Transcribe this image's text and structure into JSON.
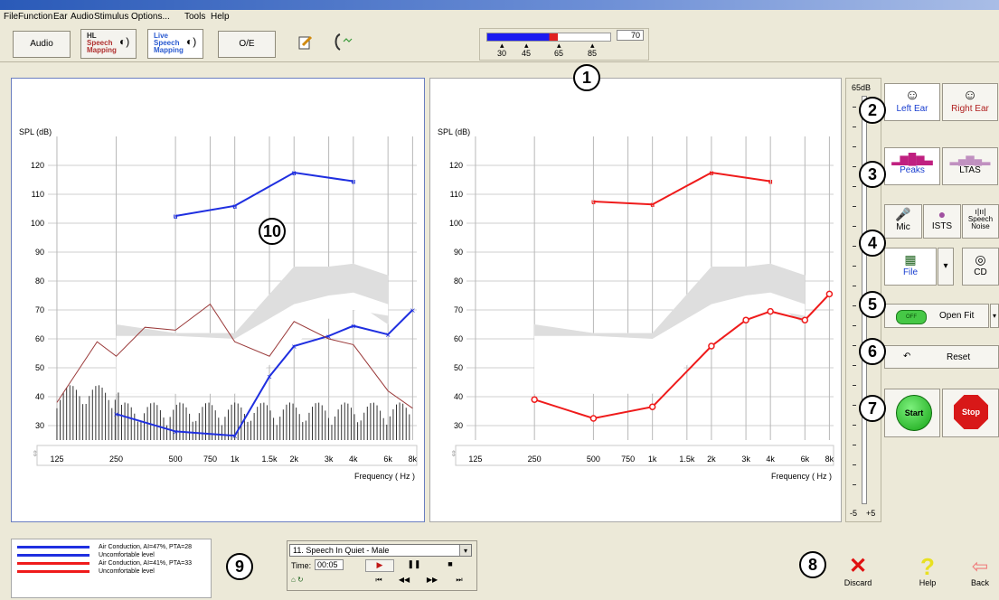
{
  "menu": [
    "File",
    "Function",
    "Ear",
    "Audio",
    "Stimulus",
    "Options...",
    "Tools",
    "Help"
  ],
  "toolbar": {
    "audio": "Audio",
    "hl_speech_mapping": [
      "HL",
      "Speech",
      "Mapping"
    ],
    "live_speech_mapping": [
      "Live",
      "Speech",
      "Mapping"
    ],
    "oe": "O/E"
  },
  "level_meter": {
    "value": "70",
    "ticks": [
      "30",
      "45",
      "65",
      "85"
    ],
    "level_fraction": 0.57
  },
  "callouts": [
    "1",
    "2",
    "3",
    "4",
    "5",
    "6",
    "7",
    "8",
    "9",
    "10"
  ],
  "graph": {
    "y_label": "SPL (dB)",
    "x_label": "Frequency ( Hz )",
    "y_ticks": [
      "120",
      "110",
      "100",
      "90",
      "80",
      "70",
      "60",
      "50",
      "40",
      "30"
    ],
    "x_ticks": [
      "125",
      "250",
      "500",
      "750",
      "1k",
      "1.5k",
      "2k",
      "3k",
      "4k",
      "6k",
      "8k"
    ]
  },
  "chart_data": [
    {
      "type": "line",
      "title": "",
      "xlabel": "Frequency ( Hz )",
      "ylabel": "SPL (dB)",
      "ylim": [
        25,
        130
      ],
      "x_scale": "log",
      "series": [
        {
          "marker": "U",
          "color": "#1f2fe0",
          "x": [
            500,
            1000,
            2000,
            4000
          ],
          "y": [
            102.5,
            106,
            117.5,
            114.5
          ]
        },
        {
          "marker": "X",
          "color": "#1f2fe0",
          "x": [
            250,
            500,
            1000,
            1500,
            2000,
            3000,
            4000,
            6000,
            8000
          ],
          "y": [
            34,
            28,
            26.5,
            47,
            57.5,
            61,
            64.5,
            61.5,
            70
          ]
        },
        {
          "marker": "none",
          "color": "#9b3b3b",
          "x": [
            125,
            200,
            250,
            350,
            500,
            750,
            1000,
            1500,
            2000,
            3000,
            4000,
            6000,
            8000
          ],
          "y": [
            38,
            59,
            54,
            64,
            63,
            72,
            59,
            54,
            66,
            60,
            58,
            42,
            36
          ]
        }
      ]
    },
    {
      "type": "line",
      "title": "",
      "xlabel": "Frequency ( Hz )",
      "ylabel": "SPL (dB)",
      "ylim": [
        25,
        130
      ],
      "x_scale": "log",
      "series": [
        {
          "marker": "U",
          "color": "#ef1b1b",
          "x": [
            500,
            1000,
            2000,
            4000
          ],
          "y": [
            107.5,
            106.5,
            117.5,
            114.5
          ]
        },
        {
          "marker": "o",
          "color": "#ef1b1b",
          "x": [
            250,
            500,
            1000,
            2000,
            3000,
            4000,
            6000,
            8000
          ],
          "y": [
            39,
            32.5,
            36.5,
            57.5,
            66.5,
            69.5,
            66.5,
            75.5
          ]
        }
      ]
    }
  ],
  "side": {
    "top_db": "65dB",
    "bottom_l": "-5",
    "bottom_r": "+5",
    "left_ear": "Left Ear",
    "right_ear": "Right Ear",
    "peaks": "Peaks",
    "ltas": "LTAS",
    "mic": "Mic",
    "ists": "ISTS",
    "speech_noise": [
      "Speech",
      "Noise"
    ],
    "file": "File",
    "cd": "CD",
    "open_fit": "Open Fit",
    "reset": "Reset",
    "start": "Start",
    "stop": "Stop"
  },
  "legend": {
    "items": [
      {
        "color": "#1f2fe0",
        "text": "Air Conduction, AI=47%, PTA=28"
      },
      {
        "color": "#1f2fe0",
        "text": "Uncomfortable level"
      },
      {
        "color": "#ef1b1b",
        "text": "Air Conduction, AI=41%, PTA=33"
      },
      {
        "color": "#ef1b1b",
        "text": "Uncomfortable level"
      }
    ]
  },
  "player": {
    "track": "11. Speech In Quiet - Male",
    "time_label": "Time:",
    "time": "00:05"
  },
  "bottom": {
    "discard": "Discard",
    "help": "Help",
    "back": "Back"
  }
}
